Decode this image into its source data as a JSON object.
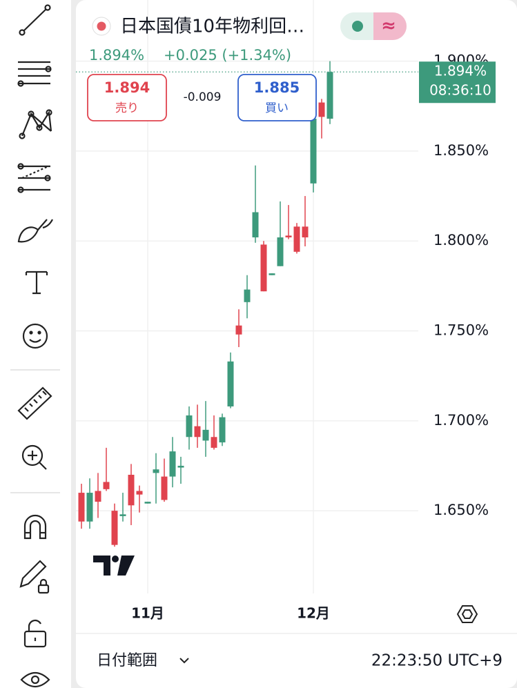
{
  "header": {
    "title": "日本国債10年物利回…",
    "price": "1.894%",
    "change": "+0.025 (+1.34%)",
    "mode": "≈"
  },
  "trade": {
    "sell": {
      "price": "1.894",
      "label": "売り"
    },
    "spread": "-0.009",
    "buy": {
      "price": "1.885",
      "label": "買い"
    }
  },
  "footer": {
    "range": "日付範囲",
    "time": "22:23:50 UTC+9"
  },
  "chart_data": {
    "type": "candlestick",
    "categories": [
      null,
      null,
      null,
      null,
      null,
      null,
      null,
      null,
      "11月",
      null,
      null,
      null,
      null,
      null,
      null,
      null,
      null,
      null,
      null,
      null,
      null,
      null,
      null,
      null,
      null,
      null,
      null,
      null,
      "12月",
      null,
      null
    ],
    "open": [
      1.66,
      1.644,
      1.661,
      1.666,
      1.65,
      1.647,
      1.67,
      1.661,
      1.654,
      1.671,
      1.669,
      1.669,
      1.674,
      1.691,
      1.697,
      1.689,
      1.691,
      1.688,
      1.708,
      1.753,
      1.766,
      1.802,
      1.798,
      1.781,
      1.786,
      1.803,
      1.808,
      1.808,
      1.832,
      1.877,
      1.868
    ],
    "high": [
      1.665,
      1.668,
      1.671,
      1.685,
      1.654,
      1.66,
      1.676,
      1.664,
      1.655,
      1.682,
      1.679,
      1.691,
      1.68,
      1.708,
      1.709,
      1.711,
      1.703,
      1.704,
      1.738,
      1.762,
      1.781,
      1.842,
      1.8,
      1.782,
      1.822,
      1.82,
      1.81,
      1.825,
      1.872,
      1.879,
      1.9
    ],
    "low": [
      1.64,
      1.64,
      1.646,
      1.661,
      1.63,
      1.644,
      1.642,
      1.649,
      1.654,
      1.654,
      1.655,
      1.663,
      1.665,
      1.684,
      1.685,
      1.68,
      1.684,
      1.686,
      1.707,
      1.741,
      1.757,
      1.799,
      1.772,
      1.781,
      1.786,
      1.801,
      1.793,
      1.797,
      1.827,
      1.857,
      1.865
    ],
    "close": [
      1.644,
      1.66,
      1.655,
      1.662,
      1.631,
      1.648,
      1.653,
      1.659,
      1.655,
      1.673,
      1.656,
      1.683,
      1.675,
      1.703,
      1.691,
      1.695,
      1.685,
      1.702,
      1.733,
      1.748,
      1.773,
      1.816,
      1.772,
      1.782,
      1.802,
      1.802,
      1.794,
      1.802,
      1.868,
      1.869,
      1.894
    ],
    "up_color": "#3d9a7c",
    "down_color": "#e0434e",
    "ylim": [
      1.604,
      1.934
    ],
    "yticks": [
      {
        "value": 1.65,
        "label": "1.650%"
      },
      {
        "value": 1.7,
        "label": "1.700%"
      },
      {
        "value": 1.75,
        "label": "1.750%"
      },
      {
        "value": 1.8,
        "label": "1.800%"
      },
      {
        "value": 1.85,
        "label": "1.850%"
      },
      {
        "value": 1.9,
        "label": "1.900%"
      }
    ],
    "grid": true,
    "last_price": {
      "value": 1.894,
      "label": "1.894%"
    },
    "last_time": "08:36:10"
  }
}
